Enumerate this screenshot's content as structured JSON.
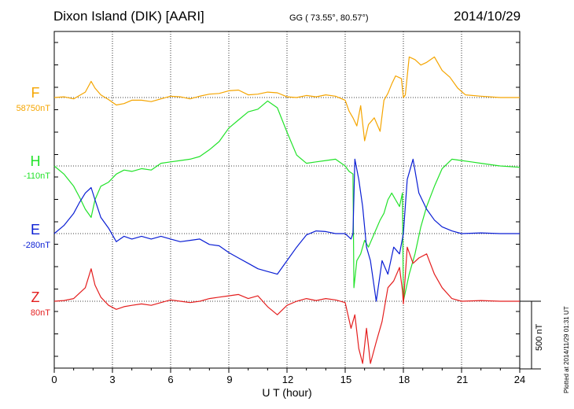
{
  "header": {
    "station": "Dixon Island (DIK)  [AARI]",
    "coords": "GG ( 73.55°,  80.57°)",
    "date": "2014/10/29"
  },
  "chart_data": {
    "type": "line",
    "title": "Dixon Island (DIK)  [AARI]",
    "xlabel": "U T (hour)",
    "xlim": [
      0,
      24
    ],
    "xticks": [
      "0",
      "3",
      "6",
      "9",
      "12",
      "15",
      "18",
      "21",
      "24"
    ],
    "grid": true,
    "scale_bar": "500 nT",
    "plotted_note": "Plotted at 2014/11/29 01:31 UT",
    "series": [
      {
        "name": "F",
        "baseline": "58750nT",
        "color": "#f5a500",
        "x": [
          0,
          0.5,
          1.0,
          1.3,
          1.6,
          1.9,
          2.1,
          2.4,
          2.8,
          3.2,
          3.6,
          4.0,
          4.5,
          5.0,
          5.5,
          6.0,
          6.5,
          7.0,
          7.5,
          8.0,
          8.5,
          9.0,
          9.5,
          10.0,
          10.5,
          11.0,
          11.5,
          12.0,
          12.5,
          13.0,
          13.5,
          14.0,
          14.5,
          15.0,
          15.2,
          15.4,
          15.6,
          15.8,
          16.0,
          16.2,
          16.5,
          16.8,
          17.0,
          17.2,
          17.4,
          17.6,
          17.9,
          18.0,
          18.1,
          18.3,
          18.6,
          18.9,
          19.2,
          19.6,
          20.0,
          20.4,
          20.8,
          21.2,
          22.0,
          23.0,
          24.0
        ],
        "values": [
          0,
          5,
          -10,
          15,
          40,
          120,
          70,
          20,
          -15,
          -55,
          -45,
          -20,
          -20,
          -30,
          -10,
          10,
          5,
          -10,
          10,
          25,
          30,
          50,
          55,
          20,
          25,
          40,
          35,
          5,
          0,
          15,
          5,
          20,
          10,
          -20,
          -100,
          -150,
          -210,
          -60,
          -320,
          -200,
          -150,
          -250,
          -20,
          30,
          100,
          160,
          140,
          0,
          20,
          300,
          280,
          240,
          260,
          300,
          200,
          150,
          70,
          20,
          10,
          0,
          0
        ]
      },
      {
        "name": "H",
        "baseline": "-110nT",
        "color": "#22e22a",
        "x": [
          0,
          0.5,
          1.0,
          1.3,
          1.6,
          1.9,
          2.1,
          2.4,
          2.8,
          3.2,
          3.6,
          4.0,
          4.5,
          5.0,
          5.5,
          6.0,
          6.5,
          7.0,
          7.5,
          8.0,
          8.5,
          9.0,
          9.5,
          10.0,
          10.5,
          11.0,
          11.5,
          12.0,
          12.5,
          13.0,
          13.5,
          14.0,
          14.5,
          15.0,
          15.2,
          15.4,
          15.45,
          15.6,
          15.8,
          16.0,
          16.2,
          16.5,
          16.8,
          17.0,
          17.2,
          17.4,
          17.6,
          17.8,
          17.95,
          18.0,
          18.3,
          18.6,
          18.9,
          19.2,
          19.6,
          20.0,
          20.5,
          21.0,
          21.5,
          22.0,
          23.0,
          24.0
        ],
        "values": [
          0,
          -60,
          -150,
          -230,
          -320,
          -380,
          -250,
          -150,
          -120,
          -60,
          -30,
          -40,
          -20,
          -30,
          20,
          30,
          40,
          50,
          70,
          120,
          180,
          280,
          340,
          400,
          420,
          480,
          430,
          250,
          80,
          20,
          30,
          40,
          50,
          0,
          -40,
          -60,
          -900,
          -700,
          -650,
          -550,
          -600,
          -500,
          -400,
          -350,
          -250,
          -200,
          -250,
          -300,
          -200,
          -1000,
          -800,
          -650,
          -450,
          -300,
          -150,
          -20,
          50,
          40,
          30,
          20,
          0,
          -10
        ]
      },
      {
        "name": "E",
        "baseline": "-280nT",
        "color": "#0a1ed4",
        "x": [
          0,
          0.5,
          1.0,
          1.3,
          1.6,
          1.9,
          2.1,
          2.4,
          2.8,
          3.2,
          3.6,
          4.0,
          4.5,
          5.0,
          5.5,
          6.0,
          6.5,
          7.0,
          7.5,
          8.0,
          8.5,
          9.0,
          9.5,
          10.0,
          10.5,
          11.0,
          11.5,
          12.0,
          12.5,
          13.0,
          13.5,
          14.0,
          14.5,
          15.0,
          15.3,
          15.4,
          15.5,
          15.7,
          15.9,
          16.1,
          16.3,
          16.6,
          16.9,
          17.2,
          17.5,
          17.8,
          18.0,
          18.2,
          18.5,
          18.8,
          19.2,
          19.6,
          20.0,
          20.5,
          21.0,
          22.0,
          23.0,
          24.0
        ],
        "values": [
          0,
          60,
          150,
          230,
          300,
          340,
          250,
          120,
          40,
          -60,
          -20,
          -40,
          -20,
          -40,
          -20,
          -40,
          -60,
          -50,
          -40,
          -80,
          -90,
          -140,
          -180,
          -220,
          -260,
          -280,
          -300,
          -200,
          -100,
          -10,
          20,
          15,
          0,
          0,
          -40,
          0,
          550,
          400,
          200,
          -100,
          -200,
          -500,
          -200,
          -300,
          -100,
          -150,
          0,
          400,
          550,
          300,
          180,
          100,
          50,
          20,
          0,
          5,
          0,
          0
        ]
      },
      {
        "name": "Z",
        "baseline": "80nT",
        "color": "#e41e1e",
        "x": [
          0,
          0.5,
          1.0,
          1.3,
          1.6,
          1.9,
          2.1,
          2.4,
          2.8,
          3.2,
          3.6,
          4.0,
          4.5,
          5.0,
          5.5,
          6.0,
          6.5,
          7.0,
          7.5,
          8.0,
          8.5,
          9.0,
          9.5,
          10.0,
          10.5,
          11.0,
          11.5,
          12.0,
          12.5,
          13.0,
          13.5,
          14.0,
          14.5,
          15.0,
          15.3,
          15.5,
          15.7,
          15.9,
          16.1,
          16.3,
          16.6,
          16.9,
          17.2,
          17.5,
          17.8,
          17.95,
          18.0,
          18.2,
          18.5,
          18.8,
          19.2,
          19.6,
          20.0,
          20.5,
          21.0,
          22.0,
          23.0,
          24.0
        ],
        "values": [
          0,
          5,
          20,
          60,
          100,
          240,
          120,
          30,
          -30,
          -60,
          -40,
          -30,
          -20,
          -30,
          -10,
          10,
          0,
          -10,
          0,
          20,
          30,
          40,
          50,
          20,
          40,
          -40,
          -100,
          -30,
          0,
          20,
          5,
          20,
          10,
          -10,
          -200,
          -100,
          -350,
          -460,
          -200,
          -460,
          -300,
          -150,
          100,
          150,
          250,
          80,
          -20,
          400,
          280,
          320,
          350,
          200,
          100,
          20,
          0,
          5,
          0,
          0
        ]
      }
    ]
  }
}
